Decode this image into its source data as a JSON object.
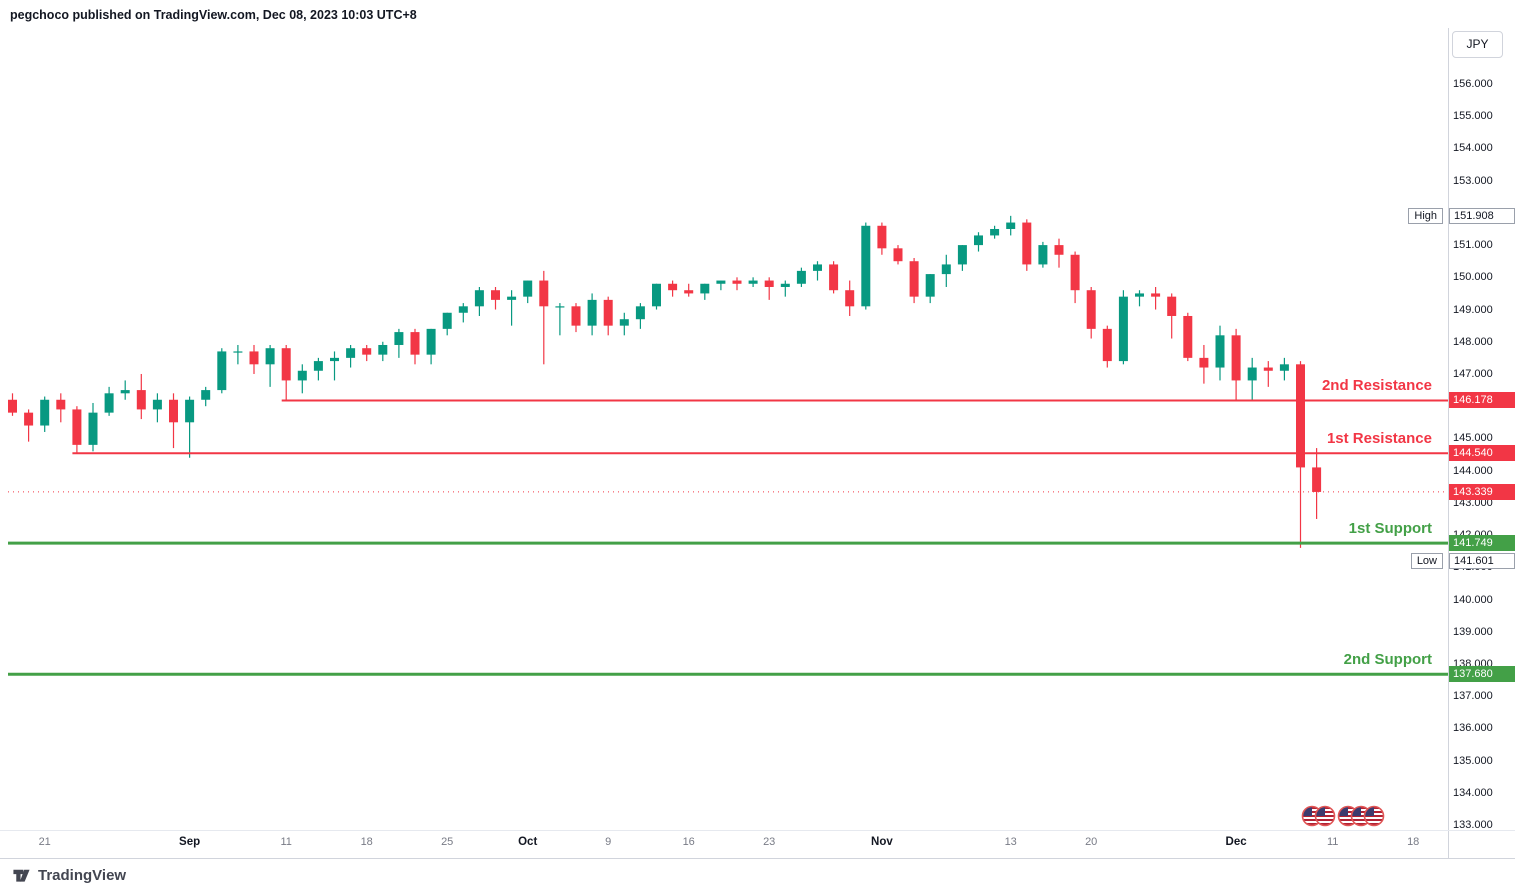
{
  "attribution": "pegchoco published on TradingView.com, Dec 08, 2023 10:03 UTC+8",
  "price_scale": {
    "currency_label": "JPY"
  },
  "footer": {
    "brand": "TradingView"
  },
  "colors": {
    "up_candle": "#089981",
    "down_candle": "#f23645",
    "resistance": "#f23645",
    "support": "#43a047",
    "axis_text": "#131722",
    "muted_text": "#787b86",
    "last_price_line": "#f23645"
  },
  "price_axis_labels": [
    "156.000",
    "155.000",
    "154.000",
    "153.000",
    "151.000",
    "150.000",
    "149.000",
    "148.000",
    "147.000",
    "145.000",
    "144.000",
    "143.000",
    "142.000",
    "141.000",
    "140.000",
    "139.000",
    "138.000",
    "137.000",
    "136.000",
    "135.000",
    "134.000",
    "133.000"
  ],
  "axis_badges": [
    {
      "text": "151.908",
      "type": "high",
      "price": 151.908,
      "side_label": "High"
    },
    {
      "text": "146.178",
      "type": "resistance",
      "price": 146.178
    },
    {
      "text": "144.540",
      "type": "resistance",
      "price": 144.54
    },
    {
      "text": "143.339",
      "type": "last",
      "price": 143.339
    },
    {
      "text": "141.749",
      "type": "support",
      "price": 141.749
    },
    {
      "text": "141.601",
      "type": "low",
      "price": 141.601,
      "y": 561,
      "side_label": "Low"
    },
    {
      "text": "137.680",
      "type": "support",
      "price": 137.68
    }
  ],
  "time_axis_ticks": [
    {
      "label": "21",
      "bar": 2
    },
    {
      "label": "Sep",
      "bar": 11,
      "strong": true
    },
    {
      "label": "11",
      "bar": 17
    },
    {
      "label": "18",
      "bar": 22
    },
    {
      "label": "25",
      "bar": 27
    },
    {
      "label": "Oct",
      "bar": 32,
      "strong": true
    },
    {
      "label": "9",
      "bar": 37
    },
    {
      "label": "16",
      "bar": 42
    },
    {
      "label": "23",
      "bar": 47
    },
    {
      "label": "Nov",
      "bar": 54,
      "strong": true
    },
    {
      "label": "13",
      "bar": 62
    },
    {
      "label": "20",
      "bar": 67
    },
    {
      "label": "Dec",
      "bar": 76,
      "strong": true
    },
    {
      "label": "11",
      "bar": 82
    },
    {
      "label": "18",
      "bar": 87
    }
  ],
  "chart_data": {
    "type": "candlestick",
    "title": "",
    "quote_currency": "JPY",
    "ylim": [
      133,
      156.9
    ],
    "grid": false,
    "high_marker": {
      "label": "High",
      "value": 151.908
    },
    "low_marker": {
      "label": "Low",
      "value": 141.601
    },
    "last_price": 143.339,
    "dates": [
      "Aug 17",
      "Aug 18",
      "Aug 21",
      "Aug 22",
      "Aug 23",
      "Aug 24",
      "Aug 25",
      "Aug 28",
      "Aug 29",
      "Aug 30",
      "Aug 31",
      "Sep 1",
      "Sep 4",
      "Sep 5",
      "Sep 6",
      "Sep 7",
      "Sep 8",
      "Sep 11",
      "Sep 12",
      "Sep 13",
      "Sep 14",
      "Sep 15",
      "Sep 18",
      "Sep 19",
      "Sep 20",
      "Sep 21",
      "Sep 22",
      "Sep 25",
      "Sep 26",
      "Sep 27",
      "Sep 28",
      "Sep 29",
      "Oct 2",
      "Oct 3",
      "Oct 4",
      "Oct 5",
      "Oct 6",
      "Oct 9",
      "Oct 10",
      "Oct 11",
      "Oct 12",
      "Oct 13",
      "Oct 16",
      "Oct 17",
      "Oct 18",
      "Oct 19",
      "Oct 20",
      "Oct 23",
      "Oct 24",
      "Oct 25",
      "Oct 26",
      "Oct 27",
      "Oct 30",
      "Oct 31",
      "Nov 1",
      "Nov 2",
      "Nov 3",
      "Nov 6",
      "Nov 7",
      "Nov 8",
      "Nov 9",
      "Nov 10",
      "Nov 13",
      "Nov 14",
      "Nov 15",
      "Nov 16",
      "Nov 17",
      "Nov 20",
      "Nov 21",
      "Nov 22",
      "Nov 23",
      "Nov 24",
      "Nov 27",
      "Nov 28",
      "Nov 29",
      "Nov 30",
      "Dec 1",
      "Dec 4",
      "Dec 5",
      "Dec 6",
      "Dec 7",
      "Dec 8"
    ],
    "ohlc": [
      [
        146.2,
        146.4,
        145.7,
        145.8
      ],
      [
        145.8,
        145.9,
        144.9,
        145.4
      ],
      [
        145.4,
        146.3,
        145.2,
        146.2
      ],
      [
        146.2,
        146.4,
        145.5,
        145.9
      ],
      [
        145.9,
        146.0,
        144.54,
        144.8
      ],
      [
        144.8,
        146.1,
        144.6,
        145.8
      ],
      [
        145.8,
        146.6,
        145.7,
        146.4
      ],
      [
        146.4,
        146.8,
        146.2,
        146.5
      ],
      [
        146.5,
        147.0,
        145.6,
        145.9
      ],
      [
        145.9,
        146.4,
        145.5,
        146.2
      ],
      [
        146.2,
        146.4,
        144.7,
        145.5
      ],
      [
        145.5,
        146.3,
        144.4,
        146.2
      ],
      [
        146.2,
        146.6,
        146.0,
        146.5
      ],
      [
        146.5,
        147.8,
        146.4,
        147.7
      ],
      [
        147.7,
        147.9,
        147.3,
        147.7
      ],
      [
        147.7,
        147.9,
        147.0,
        147.3
      ],
      [
        147.3,
        147.9,
        146.6,
        147.8
      ],
      [
        147.8,
        147.9,
        146.178,
        146.8
      ],
      [
        146.8,
        147.3,
        146.4,
        147.1
      ],
      [
        147.1,
        147.5,
        146.8,
        147.4
      ],
      [
        147.4,
        147.7,
        146.8,
        147.5
      ],
      [
        147.5,
        147.9,
        147.2,
        147.8
      ],
      [
        147.8,
        147.9,
        147.4,
        147.6
      ],
      [
        147.6,
        148.0,
        147.4,
        147.9
      ],
      [
        147.9,
        148.4,
        147.5,
        148.3
      ],
      [
        148.3,
        148.4,
        147.3,
        147.6
      ],
      [
        147.6,
        148.4,
        147.3,
        148.4
      ],
      [
        148.4,
        148.9,
        148.2,
        148.9
      ],
      [
        148.9,
        149.2,
        148.6,
        149.1
      ],
      [
        149.1,
        149.7,
        148.8,
        149.6
      ],
      [
        149.6,
        149.7,
        149.0,
        149.3
      ],
      [
        149.3,
        149.6,
        148.5,
        149.4
      ],
      [
        149.4,
        149.9,
        149.2,
        149.9
      ],
      [
        149.9,
        150.2,
        147.3,
        149.1
      ],
      [
        149.1,
        149.2,
        148.2,
        149.1
      ],
      [
        149.1,
        149.2,
        148.3,
        148.5
      ],
      [
        148.5,
        149.5,
        148.2,
        149.3
      ],
      [
        149.3,
        149.4,
        148.2,
        148.5
      ],
      [
        148.5,
        148.9,
        148.2,
        148.7
      ],
      [
        148.7,
        149.2,
        148.4,
        149.1
      ],
      [
        149.1,
        149.8,
        149.0,
        149.8
      ],
      [
        149.8,
        149.9,
        149.4,
        149.6
      ],
      [
        149.6,
        149.8,
        149.4,
        149.5
      ],
      [
        149.5,
        149.8,
        149.3,
        149.8
      ],
      [
        149.8,
        149.9,
        149.6,
        149.9
      ],
      [
        149.9,
        150.0,
        149.6,
        149.8
      ],
      [
        149.8,
        150.0,
        149.7,
        149.9
      ],
      [
        149.9,
        150.0,
        149.3,
        149.7
      ],
      [
        149.7,
        149.9,
        149.4,
        149.8
      ],
      [
        149.8,
        150.3,
        149.7,
        150.2
      ],
      [
        150.2,
        150.5,
        149.9,
        150.4
      ],
      [
        150.4,
        150.5,
        149.5,
        149.6
      ],
      [
        149.6,
        149.9,
        148.8,
        149.1
      ],
      [
        149.1,
        151.7,
        149.0,
        151.6
      ],
      [
        151.6,
        151.7,
        150.7,
        150.9
      ],
      [
        150.9,
        151.0,
        150.4,
        150.5
      ],
      [
        150.5,
        150.6,
        149.2,
        149.4
      ],
      [
        149.4,
        150.1,
        149.2,
        150.1
      ],
      [
        150.1,
        150.7,
        149.7,
        150.4
      ],
      [
        150.4,
        151.0,
        150.2,
        151.0
      ],
      [
        151.0,
        151.4,
        150.8,
        151.3
      ],
      [
        151.3,
        151.6,
        151.2,
        151.5
      ],
      [
        151.5,
        151.908,
        151.3,
        151.7
      ],
      [
        151.7,
        151.8,
        150.2,
        150.4
      ],
      [
        150.4,
        151.1,
        150.3,
        151.0
      ],
      [
        151.0,
        151.2,
        150.3,
        150.7
      ],
      [
        150.7,
        150.8,
        149.2,
        149.6
      ],
      [
        149.6,
        149.7,
        148.1,
        148.4
      ],
      [
        148.4,
        148.5,
        147.2,
        147.4
      ],
      [
        147.4,
        149.6,
        147.3,
        149.4
      ],
      [
        149.4,
        149.6,
        149.1,
        149.5
      ],
      [
        149.5,
        149.7,
        149.0,
        149.4
      ],
      [
        149.4,
        149.5,
        148.1,
        148.8
      ],
      [
        148.8,
        148.9,
        147.4,
        147.5
      ],
      [
        147.5,
        147.9,
        146.7,
        147.2
      ],
      [
        147.2,
        148.5,
        146.8,
        148.2
      ],
      [
        148.2,
        148.4,
        146.2,
        146.8
      ],
      [
        146.8,
        147.5,
        146.2,
        147.2
      ],
      [
        147.2,
        147.4,
        146.6,
        147.1
      ],
      [
        147.1,
        147.5,
        146.8,
        147.3
      ],
      [
        147.3,
        147.4,
        141.601,
        144.1
      ],
      [
        144.1,
        144.7,
        142.5,
        143.339
      ]
    ],
    "levels": [
      {
        "label": "2nd Resistance",
        "price": 146.178,
        "kind": "resistance",
        "start_bar": 17,
        "width": 2
      },
      {
        "label": "1st Resistance",
        "price": 144.54,
        "kind": "resistance",
        "start_bar": 4,
        "width": 2
      },
      {
        "label": "1st Support",
        "price": 141.749,
        "kind": "support",
        "start_bar": 0,
        "width": 3
      },
      {
        "label": "2nd Support",
        "price": 137.68,
        "kind": "support",
        "start_bar": 0,
        "width": 3
      }
    ]
  },
  "event_markers": {
    "groups": [
      {
        "x": 1312,
        "count": 2
      },
      {
        "x": 1348,
        "count": 3
      }
    ]
  }
}
